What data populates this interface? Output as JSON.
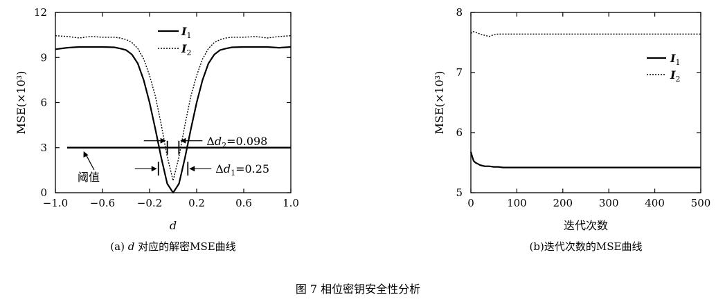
{
  "figure_caption": "图 7 相位密钥安全性分析",
  "chart_data": [
    {
      "type": "line",
      "caption": "(a) d 对应的解密MSE曲线",
      "caption_prefix": "(a) ",
      "caption_var": "d",
      "caption_rest": " 对应的解密MSE曲线",
      "xlabel": "d",
      "ylabel": "MSE(×10³)",
      "xlim": [
        -1.0,
        1.0
      ],
      "ylim": [
        0,
        12
      ],
      "xticks": [
        "−1.0",
        "−0.6",
        "−0.2",
        "0.2",
        "0.6",
        "1.0"
      ],
      "xtick_values": [
        -1.0,
        -0.6,
        -0.2,
        0.2,
        0.6,
        1.0
      ],
      "yticks": [
        "0",
        "3",
        "6",
        "9",
        "12"
      ],
      "ytick_values": [
        0,
        3,
        6,
        9,
        12
      ],
      "legend_position": "top-center",
      "series": [
        {
          "name": "I1",
          "name_base": "I",
          "name_sub": "1",
          "style": "solid",
          "x": [
            -1.0,
            -0.9,
            -0.8,
            -0.7,
            -0.6,
            -0.5,
            -0.45,
            -0.4,
            -0.35,
            -0.3,
            -0.25,
            -0.2,
            -0.15,
            -0.1,
            -0.05,
            0.0,
            0.05,
            0.1,
            0.15,
            0.2,
            0.25,
            0.3,
            0.35,
            0.4,
            0.45,
            0.5,
            0.6,
            0.7,
            0.8,
            0.9,
            1.0
          ],
          "y": [
            9.55,
            9.65,
            9.7,
            9.7,
            9.7,
            9.68,
            9.6,
            9.5,
            9.2,
            8.6,
            7.5,
            6.0,
            4.2,
            2.3,
            0.6,
            0.0,
            0.6,
            2.3,
            4.2,
            6.0,
            7.5,
            8.6,
            9.2,
            9.5,
            9.6,
            9.68,
            9.7,
            9.7,
            9.7,
            9.65,
            9.7
          ]
        },
        {
          "name": "I2",
          "name_base": "I",
          "name_sub": "2",
          "style": "dotted",
          "x": [
            -1.0,
            -0.9,
            -0.8,
            -0.7,
            -0.6,
            -0.5,
            -0.45,
            -0.4,
            -0.35,
            -0.3,
            -0.25,
            -0.2,
            -0.15,
            -0.1,
            -0.05,
            0.0,
            0.05,
            0.1,
            0.15,
            0.2,
            0.25,
            0.3,
            0.35,
            0.4,
            0.45,
            0.5,
            0.6,
            0.7,
            0.8,
            0.9,
            1.0
          ],
          "y": [
            10.45,
            10.4,
            10.3,
            10.4,
            10.35,
            10.35,
            10.3,
            10.2,
            10.0,
            9.6,
            8.9,
            7.8,
            6.4,
            4.5,
            2.4,
            0.8,
            2.4,
            4.5,
            6.4,
            7.8,
            8.9,
            9.6,
            10.0,
            10.2,
            10.3,
            10.35,
            10.35,
            10.4,
            10.3,
            10.4,
            10.45
          ]
        }
      ],
      "threshold": {
        "y": 3,
        "label": "阈值"
      },
      "annotations": [
        {
          "label": "Δd₂=0.098",
          "label_base": "Δ",
          "label_var": "d",
          "label_sub": "2",
          "label_value": "=0.098",
          "x_left": -0.049,
          "x_right": 0.049,
          "y": 3.0
        },
        {
          "label": "Δd₁=0.25",
          "label_base": "Δ",
          "label_var": "d",
          "label_sub": "1",
          "label_value": "=0.25",
          "x_left": -0.125,
          "x_right": 0.125,
          "y": 1.6
        }
      ]
    },
    {
      "type": "line",
      "caption": "(b)迭代次数的MSE曲线",
      "xlabel": "迭代次数",
      "ylabel": "MSE(×10³)",
      "xlim": [
        0,
        500
      ],
      "ylim": [
        5,
        8
      ],
      "xticks": [
        "0",
        "100",
        "200",
        "300",
        "400",
        "500"
      ],
      "xtick_values": [
        0,
        100,
        200,
        300,
        400,
        500
      ],
      "yticks": [
        "5",
        "6",
        "7",
        "8"
      ],
      "ytick_values": [
        5,
        6,
        7,
        8
      ],
      "legend_position": "upper-right",
      "series": [
        {
          "name": "I1",
          "name_base": "I",
          "name_sub": "1",
          "style": "solid",
          "x": [
            0,
            3,
            6,
            10,
            15,
            20,
            30,
            40,
            50,
            60,
            70,
            80,
            100,
            200,
            300,
            400,
            500
          ],
          "y": [
            5.68,
            5.6,
            5.53,
            5.5,
            5.48,
            5.46,
            5.44,
            5.44,
            5.43,
            5.43,
            5.42,
            5.42,
            5.42,
            5.42,
            5.42,
            5.42,
            5.42
          ]
        },
        {
          "name": "I2",
          "name_base": "I",
          "name_sub": "2",
          "style": "dotted",
          "x": [
            0,
            5,
            10,
            20,
            30,
            40,
            50,
            60,
            80,
            100,
            200,
            300,
            400,
            500
          ],
          "y": [
            7.65,
            7.68,
            7.67,
            7.64,
            7.62,
            7.6,
            7.63,
            7.64,
            7.64,
            7.64,
            7.64,
            7.64,
            7.64,
            7.64
          ]
        }
      ]
    }
  ]
}
